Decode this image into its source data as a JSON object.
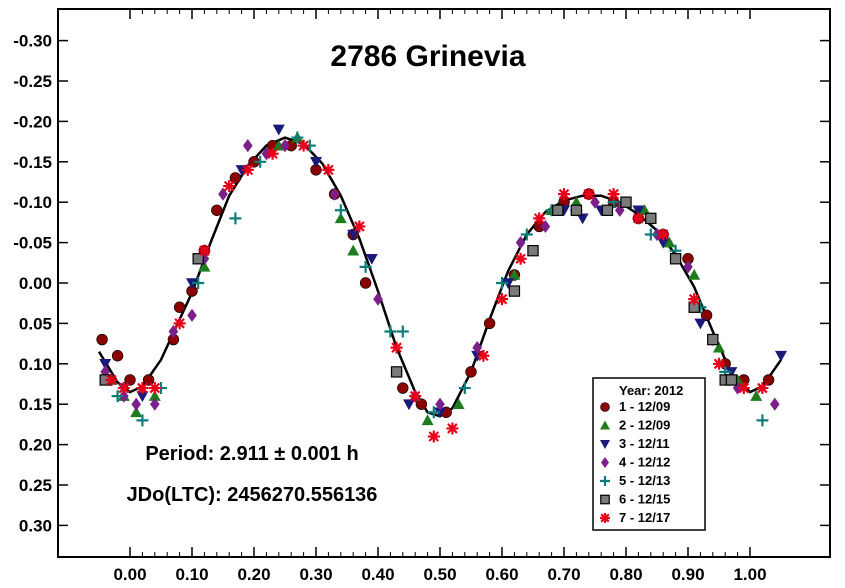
{
  "chart_data": {
    "type": "scatter",
    "title": "2786 Grinevia",
    "xlabel": "",
    "ylabel": "",
    "xlim": [
      -0.12,
      1.12
    ],
    "ylim": [
      0.35,
      -0.35
    ],
    "y_inverted": true,
    "grid": false,
    "x_ticks": [
      "0.00",
      "0.10",
      "0.20",
      "0.30",
      "0.40",
      "0.50",
      "0.60",
      "0.70",
      "0.80",
      "0.90",
      "1.00"
    ],
    "y_ticks": [
      "-0.30",
      "-0.25",
      "-0.20",
      "-0.15",
      "-0.10",
      "-0.05",
      "0.00",
      "0.05",
      "0.10",
      "0.15",
      "0.20",
      "0.25",
      "0.30"
    ],
    "annotations": {
      "period": "Period: 2.911 ± 0.001 h",
      "jdo": "JDo(LTC): 2456270.556136"
    },
    "legend": {
      "title": "Year: 2012",
      "placement": "bottom-right"
    },
    "fit_curve": {
      "name": "",
      "color": "#000000",
      "points": [
        [
          -0.05,
          0.085
        ],
        [
          -0.02,
          0.123
        ],
        [
          0.0,
          0.135
        ],
        [
          0.02,
          0.128
        ],
        [
          0.05,
          0.095
        ],
        [
          0.08,
          0.045
        ],
        [
          0.1,
          0.012
        ],
        [
          0.13,
          -0.05
        ],
        [
          0.16,
          -0.108
        ],
        [
          0.19,
          -0.145
        ],
        [
          0.22,
          -0.17
        ],
        [
          0.25,
          -0.18
        ],
        [
          0.28,
          -0.172
        ],
        [
          0.31,
          -0.148
        ],
        [
          0.34,
          -0.108
        ],
        [
          0.37,
          -0.055
        ],
        [
          0.4,
          0.01
        ],
        [
          0.43,
          0.08
        ],
        [
          0.46,
          0.135
        ],
        [
          0.48,
          0.16
        ],
        [
          0.5,
          0.165
        ],
        [
          0.52,
          0.155
        ],
        [
          0.55,
          0.11
        ],
        [
          0.58,
          0.045
        ],
        [
          0.61,
          -0.015
        ],
        [
          0.64,
          -0.06
        ],
        [
          0.67,
          -0.088
        ],
        [
          0.7,
          -0.102
        ],
        [
          0.73,
          -0.108
        ],
        [
          0.76,
          -0.108
        ],
        [
          0.79,
          -0.1
        ],
        [
          0.82,
          -0.085
        ],
        [
          0.85,
          -0.065
        ],
        [
          0.88,
          -0.035
        ],
        [
          0.91,
          0.005
        ],
        [
          0.94,
          0.06
        ],
        [
          0.97,
          0.112
        ],
        [
          1.0,
          0.135
        ],
        [
          1.02,
          0.128
        ],
        [
          1.05,
          0.095
        ]
      ]
    },
    "series": [
      {
        "name": "1 - 12/09",
        "marker": "circle",
        "color": "#8B0000",
        "points": [
          [
            -0.045,
            0.07
          ],
          [
            -0.02,
            0.09
          ],
          [
            0.0,
            0.12
          ],
          [
            0.03,
            0.12
          ],
          [
            0.07,
            0.07
          ],
          [
            0.08,
            0.03
          ],
          [
            0.1,
            0.01
          ],
          [
            0.12,
            -0.04
          ],
          [
            0.14,
            -0.09
          ],
          [
            0.17,
            -0.13
          ],
          [
            0.2,
            -0.15
          ],
          [
            0.23,
            -0.17
          ],
          [
            0.26,
            -0.17
          ],
          [
            0.3,
            -0.14
          ],
          [
            0.33,
            -0.11
          ],
          [
            0.36,
            -0.06
          ],
          [
            0.38,
            0.0
          ],
          [
            0.44,
            0.13
          ],
          [
            0.47,
            0.15
          ],
          [
            0.51,
            0.16
          ],
          [
            0.55,
            0.11
          ],
          [
            0.58,
            0.05
          ],
          [
            0.62,
            -0.01
          ],
          [
            0.66,
            -0.07
          ],
          [
            0.7,
            -0.1
          ],
          [
            0.74,
            -0.11
          ],
          [
            0.78,
            -0.1
          ],
          [
            0.82,
            -0.08
          ],
          [
            0.86,
            -0.06
          ],
          [
            0.9,
            -0.03
          ],
          [
            0.93,
            0.04
          ],
          [
            0.96,
            0.1
          ],
          [
            0.99,
            0.12
          ],
          [
            1.03,
            0.12
          ]
        ]
      },
      {
        "name": "2 - 12/09",
        "marker": "triangle-up",
        "color": "#1E7B1E",
        "points": [
          [
            -0.03,
            0.12
          ],
          [
            -0.01,
            0.14
          ],
          [
            0.01,
            0.16
          ],
          [
            0.04,
            0.14
          ],
          [
            0.12,
            -0.02
          ],
          [
            0.24,
            -0.17
          ],
          [
            0.27,
            -0.18
          ],
          [
            0.34,
            -0.08
          ],
          [
            0.36,
            -0.04
          ],
          [
            0.46,
            0.14
          ],
          [
            0.48,
            0.17
          ],
          [
            0.53,
            0.15
          ],
          [
            0.62,
            -0.01
          ],
          [
            0.68,
            -0.09
          ],
          [
            0.72,
            -0.1
          ],
          [
            0.77,
            -0.09
          ],
          [
            0.8,
            -0.1
          ],
          [
            0.83,
            -0.09
          ],
          [
            0.87,
            -0.05
          ],
          [
            0.91,
            -0.01
          ],
          [
            0.95,
            0.08
          ],
          [
            0.98,
            0.12
          ],
          [
            1.01,
            0.14
          ]
        ]
      },
      {
        "name": "3 - 12/11",
        "marker": "triangle-down",
        "color": "#1A1A7A",
        "points": [
          [
            -0.04,
            0.1
          ],
          [
            -0.01,
            0.13
          ],
          [
            0.02,
            0.14
          ],
          [
            0.1,
            0.0
          ],
          [
            0.18,
            -0.14
          ],
          [
            0.24,
            -0.19
          ],
          [
            0.3,
            -0.15
          ],
          [
            0.36,
            -0.06
          ],
          [
            0.39,
            -0.03
          ],
          [
            0.45,
            0.15
          ],
          [
            0.5,
            0.16
          ],
          [
            0.56,
            0.09
          ],
          [
            0.61,
            0.0
          ],
          [
            0.7,
            -0.09
          ],
          [
            0.73,
            -0.08
          ],
          [
            0.76,
            -0.09
          ],
          [
            0.82,
            -0.09
          ],
          [
            0.86,
            -0.05
          ],
          [
            0.92,
            0.05
          ],
          [
            0.97,
            0.11
          ],
          [
            1.05,
            0.09
          ]
        ]
      },
      {
        "name": "4 - 12/12",
        "marker": "diamond",
        "color": "#7B1F8B",
        "points": [
          [
            -0.04,
            0.11
          ],
          [
            -0.01,
            0.14
          ],
          [
            0.01,
            0.15
          ],
          [
            0.04,
            0.15
          ],
          [
            0.07,
            0.06
          ],
          [
            0.1,
            0.04
          ],
          [
            0.12,
            -0.03
          ],
          [
            0.15,
            -0.11
          ],
          [
            0.19,
            -0.17
          ],
          [
            0.22,
            -0.16
          ],
          [
            0.25,
            -0.17
          ],
          [
            0.33,
            -0.11
          ],
          [
            0.4,
            0.02
          ],
          [
            0.46,
            0.14
          ],
          [
            0.5,
            0.15
          ],
          [
            0.56,
            0.08
          ],
          [
            0.63,
            -0.05
          ],
          [
            0.67,
            -0.07
          ],
          [
            0.75,
            -0.1
          ],
          [
            0.79,
            -0.09
          ],
          [
            0.85,
            -0.06
          ],
          [
            0.9,
            -0.02
          ],
          [
            0.94,
            0.07
          ],
          [
            0.98,
            0.13
          ],
          [
            1.04,
            0.15
          ]
        ]
      },
      {
        "name": "5 - 12/13",
        "marker": "plus",
        "color": "#0E7C7B",
        "points": [
          [
            -0.02,
            0.14
          ],
          [
            0.02,
            0.17
          ],
          [
            0.05,
            0.13
          ],
          [
            0.11,
            0.0
          ],
          [
            0.17,
            -0.08
          ],
          [
            0.21,
            -0.15
          ],
          [
            0.27,
            -0.18
          ],
          [
            0.29,
            -0.17
          ],
          [
            0.34,
            -0.09
          ],
          [
            0.38,
            -0.02
          ],
          [
            0.42,
            0.06
          ],
          [
            0.44,
            0.06
          ],
          [
            0.49,
            0.16
          ],
          [
            0.54,
            0.13
          ],
          [
            0.6,
            0.0
          ],
          [
            0.64,
            -0.06
          ],
          [
            0.68,
            -0.09
          ],
          [
            0.72,
            -0.09
          ],
          [
            0.78,
            -0.1
          ],
          [
            0.84,
            -0.06
          ],
          [
            0.88,
            -0.04
          ],
          [
            0.92,
            0.03
          ],
          [
            0.96,
            0.11
          ],
          [
            1.02,
            0.17
          ]
        ]
      },
      {
        "name": "6 - 12/15",
        "marker": "square",
        "color": "#7A7A7A",
        "points": [
          [
            -0.04,
            0.12
          ],
          [
            0.11,
            -0.03
          ],
          [
            0.43,
            0.11
          ],
          [
            0.62,
            0.01
          ],
          [
            0.65,
            -0.04
          ],
          [
            0.69,
            -0.09
          ],
          [
            0.72,
            -0.09
          ],
          [
            0.77,
            -0.09
          ],
          [
            0.8,
            -0.1
          ],
          [
            0.84,
            -0.08
          ],
          [
            0.88,
            -0.03
          ],
          [
            0.91,
            0.03
          ],
          [
            0.94,
            0.07
          ],
          [
            0.96,
            0.12
          ],
          [
            0.97,
            0.12
          ]
        ]
      },
      {
        "name": "7 - 12/17",
        "marker": "asterisk",
        "color": "#E8001B",
        "points": [
          [
            -0.03,
            0.12
          ],
          [
            -0.01,
            0.13
          ],
          [
            0.02,
            0.13
          ],
          [
            0.04,
            0.13
          ],
          [
            0.08,
            0.05
          ],
          [
            0.12,
            -0.04
          ],
          [
            0.16,
            -0.12
          ],
          [
            0.19,
            -0.14
          ],
          [
            0.23,
            -0.16
          ],
          [
            0.28,
            -0.17
          ],
          [
            0.32,
            -0.14
          ],
          [
            0.37,
            -0.07
          ],
          [
            0.43,
            0.08
          ],
          [
            0.46,
            0.14
          ],
          [
            0.49,
            0.19
          ],
          [
            0.52,
            0.18
          ],
          [
            0.57,
            0.09
          ],
          [
            0.6,
            0.02
          ],
          [
            0.63,
            -0.03
          ],
          [
            0.66,
            -0.08
          ],
          [
            0.7,
            -0.11
          ],
          [
            0.74,
            -0.11
          ],
          [
            0.78,
            -0.11
          ],
          [
            0.82,
            -0.08
          ],
          [
            0.86,
            -0.06
          ],
          [
            0.91,
            0.02
          ],
          [
            0.95,
            0.1
          ],
          [
            0.99,
            0.13
          ],
          [
            1.02,
            0.13
          ]
        ]
      }
    ]
  }
}
